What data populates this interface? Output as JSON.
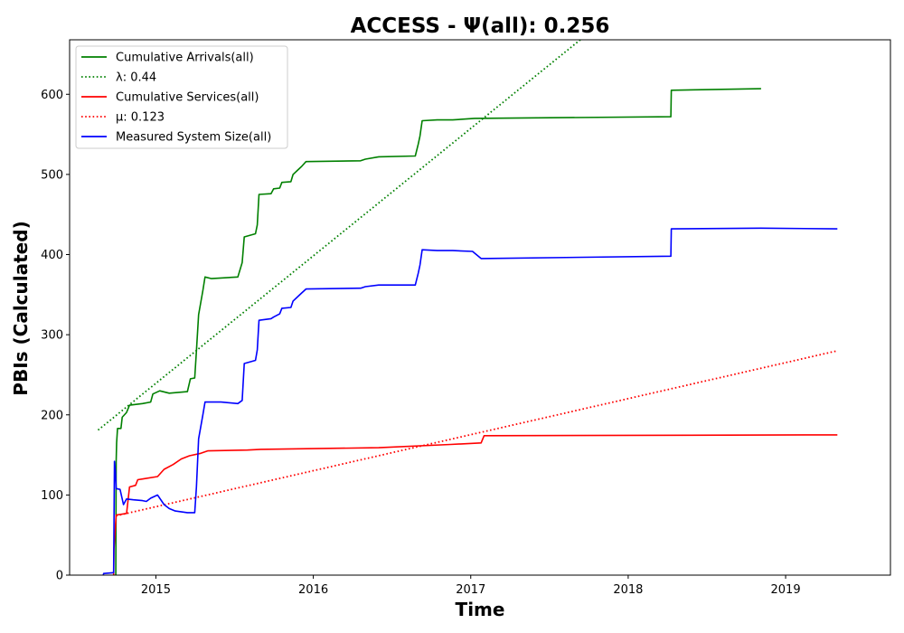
{
  "chart_data": {
    "type": "line",
    "title": "ACCESS -  Ψ(all): 0.256",
    "xlabel": "Time",
    "ylabel": "PBIs (Calculated)",
    "xlim": [
      "2014-06-15",
      "2019-09-01"
    ],
    "ylim": [
      0,
      668
    ],
    "grid": false,
    "legend_position": "top-left",
    "x_ticks": [
      "2015",
      "2016",
      "2017",
      "2018",
      "2019"
    ],
    "y_ticks": [
      "0",
      "100",
      "200",
      "300",
      "400",
      "500",
      "600"
    ],
    "series": [
      {
        "name": "Cumulative Arrivals(all)",
        "color": "#008000",
        "style": "solid",
        "points": [
          [
            "2014-09-30",
            0
          ],
          [
            "2014-10-01",
            142
          ],
          [
            "2014-10-02",
            165
          ],
          [
            "2014-10-04",
            183
          ],
          [
            "2014-10-12",
            183
          ],
          [
            "2014-10-15",
            197
          ],
          [
            "2014-10-25",
            203
          ],
          [
            "2014-11-01",
            212
          ],
          [
            "2014-12-01",
            214
          ],
          [
            "2014-12-20",
            216
          ],
          [
            "2014-12-25",
            226
          ],
          [
            "2015-01-10",
            230
          ],
          [
            "2015-02-01",
            227
          ],
          [
            "2015-03-15",
            229
          ],
          [
            "2015-03-22",
            245
          ],
          [
            "2015-04-01",
            246
          ],
          [
            "2015-04-05",
            280
          ],
          [
            "2015-04-10",
            325
          ],
          [
            "2015-04-20",
            355
          ],
          [
            "2015-04-25",
            372
          ],
          [
            "2015-05-10",
            370
          ],
          [
            "2015-07-10",
            372
          ],
          [
            "2015-07-20",
            390
          ],
          [
            "2015-07-25",
            422
          ],
          [
            "2015-08-20",
            426
          ],
          [
            "2015-08-24",
            437
          ],
          [
            "2015-08-28",
            475
          ],
          [
            "2015-09-25",
            476
          ],
          [
            "2015-10-01",
            482
          ],
          [
            "2015-10-15",
            483
          ],
          [
            "2015-10-20",
            490
          ],
          [
            "2015-11-10",
            491
          ],
          [
            "2015-11-15",
            500
          ],
          [
            "2015-11-25",
            505
          ],
          [
            "2015-12-05",
            510
          ],
          [
            "2015-12-15",
            516
          ],
          [
            "2016-04-20",
            517
          ],
          [
            "2016-05-01",
            519
          ],
          [
            "2016-06-01",
            522
          ],
          [
            "2016-08-25",
            523
          ],
          [
            "2016-09-01",
            538
          ],
          [
            "2016-09-05",
            548
          ],
          [
            "2016-09-10",
            567
          ],
          [
            "2016-10-15",
            568
          ],
          [
            "2016-11-20",
            568
          ],
          [
            "2017-01-10",
            570
          ],
          [
            "2018-04-10",
            572
          ],
          [
            "2018-04-11",
            605
          ],
          [
            "2018-11-05",
            607
          ]
        ]
      },
      {
        "name": "λ: 0.44",
        "color": "#008000",
        "style": "dotted",
        "points": [
          [
            "2014-08-20",
            181
          ],
          [
            "2017-09-12",
            668
          ]
        ]
      },
      {
        "name": "Cumulative Services(all)",
        "color": "#ff0000",
        "style": "solid",
        "points": [
          [
            "2014-09-25",
            0
          ],
          [
            "2014-09-26",
            33
          ],
          [
            "2014-10-01",
            75
          ],
          [
            "2014-10-25",
            77
          ],
          [
            "2014-11-01",
            110
          ],
          [
            "2014-11-15",
            112
          ],
          [
            "2014-11-20",
            119
          ],
          [
            "2014-12-01",
            120
          ],
          [
            "2015-01-05",
            123
          ],
          [
            "2015-01-20",
            132
          ],
          [
            "2015-02-10",
            138
          ],
          [
            "2015-03-01",
            145
          ],
          [
            "2015-03-20",
            149
          ],
          [
            "2015-04-15",
            152
          ],
          [
            "2015-05-01",
            155
          ],
          [
            "2015-08-01",
            156
          ],
          [
            "2015-09-01",
            157
          ],
          [
            "2016-06-01",
            159
          ],
          [
            "2016-11-15",
            163
          ],
          [
            "2017-01-25",
            165
          ],
          [
            "2017-02-01",
            174
          ],
          [
            "2019-05-01",
            175
          ]
        ]
      },
      {
        "name": "μ: 0.123",
        "color": "#ff0000",
        "style": "dotted",
        "points": [
          [
            "2014-10-01",
            74
          ],
          [
            "2019-05-01",
            280
          ]
        ]
      },
      {
        "name": "Measured System Size(all)",
        "color": "#0000ff",
        "style": "solid",
        "points": [
          [
            "2014-09-01",
            0
          ],
          [
            "2014-09-02",
            2
          ],
          [
            "2014-09-25",
            3
          ],
          [
            "2014-09-27",
            142
          ],
          [
            "2014-09-29",
            130
          ],
          [
            "2014-10-01",
            108
          ],
          [
            "2014-10-10",
            107
          ],
          [
            "2014-10-18",
            88
          ],
          [
            "2014-10-25",
            95
          ],
          [
            "2014-11-10",
            94
          ],
          [
            "2014-12-01",
            93
          ],
          [
            "2014-12-10",
            92
          ],
          [
            "2014-12-20",
            96
          ],
          [
            "2015-01-05",
            100
          ],
          [
            "2015-01-20",
            88
          ],
          [
            "2015-02-01",
            83
          ],
          [
            "2015-02-15",
            80
          ],
          [
            "2015-03-15",
            78
          ],
          [
            "2015-04-01",
            78
          ],
          [
            "2015-04-05",
            110
          ],
          [
            "2015-04-10",
            170
          ],
          [
            "2015-04-20",
            200
          ],
          [
            "2015-04-25",
            216
          ],
          [
            "2015-05-10",
            216
          ],
          [
            "2015-06-01",
            216
          ],
          [
            "2015-07-10",
            214
          ],
          [
            "2015-07-20",
            218
          ],
          [
            "2015-07-25",
            264
          ],
          [
            "2015-08-20",
            268
          ],
          [
            "2015-08-24",
            281
          ],
          [
            "2015-08-28",
            318
          ],
          [
            "2015-09-25",
            320
          ],
          [
            "2015-10-01",
            322
          ],
          [
            "2015-10-15",
            326
          ],
          [
            "2015-10-20",
            333
          ],
          [
            "2015-11-10",
            334
          ],
          [
            "2015-11-15",
            342
          ],
          [
            "2015-11-25",
            347
          ],
          [
            "2015-12-05",
            352
          ],
          [
            "2015-12-15",
            357
          ],
          [
            "2016-04-20",
            358
          ],
          [
            "2016-05-01",
            360
          ],
          [
            "2016-06-01",
            362
          ],
          [
            "2016-08-25",
            362
          ],
          [
            "2016-09-01",
            377
          ],
          [
            "2016-09-05",
            387
          ],
          [
            "2016-09-10",
            406
          ],
          [
            "2016-10-15",
            405
          ],
          [
            "2016-11-20",
            405
          ],
          [
            "2017-01-05",
            404
          ],
          [
            "2017-01-25",
            395
          ],
          [
            "2018-04-10",
            398
          ],
          [
            "2018-04-11",
            432
          ],
          [
            "2018-11-05",
            433
          ],
          [
            "2019-05-01",
            432
          ]
        ]
      }
    ]
  }
}
